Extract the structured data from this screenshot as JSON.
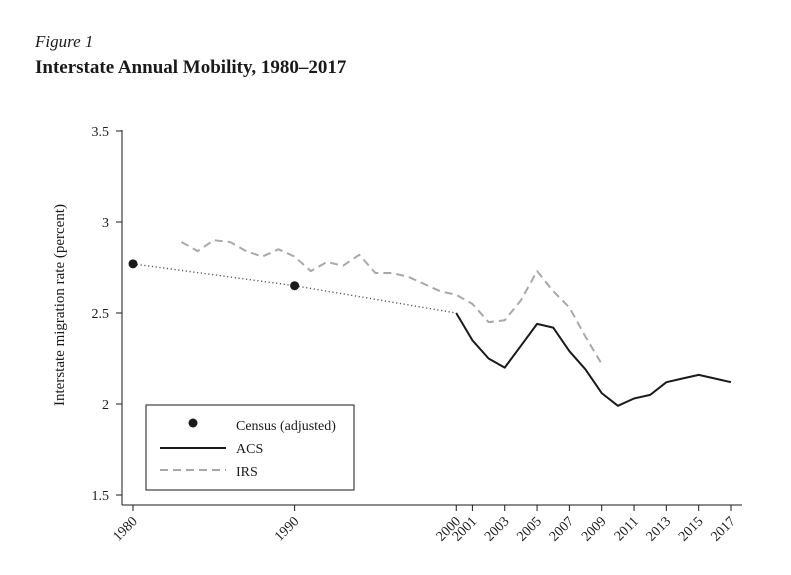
{
  "figure_label": "Figure 1",
  "figure_title": "Interstate Annual Mobility, 1980–2017",
  "colors": {
    "acs": "#1a1a1a",
    "irs": "#a8a8a8",
    "census": "#1a1a1a",
    "dotted": "#555555"
  },
  "chart_data": {
    "type": "line",
    "title": "Interstate Annual Mobility, 1980–2017",
    "xlabel": "",
    "ylabel": "Interstate migration rate (percent)",
    "xlim": [
      1980,
      2017
    ],
    "ylim": [
      1.5,
      3.5
    ],
    "x_ticks": [
      "1980",
      "1990",
      "2000",
      "2001",
      "2003",
      "2005",
      "2007",
      "2009",
      "2011",
      "2013",
      "2015",
      "2017"
    ],
    "y_ticks": [
      "1.5",
      "2",
      "2.5",
      "3",
      "3.5"
    ],
    "series": [
      {
        "name": "Census (adjusted)",
        "style": "points",
        "x": [
          1980,
          1990
        ],
        "y": [
          2.77,
          2.65
        ]
      },
      {
        "name": "ACS",
        "style": "solid",
        "x": [
          2000,
          2001,
          2002,
          2003,
          2004,
          2005,
          2006,
          2007,
          2008,
          2009,
          2010,
          2011,
          2012,
          2013,
          2014,
          2015,
          2016,
          2017
        ],
        "y": [
          2.5,
          2.35,
          2.25,
          2.2,
          2.32,
          2.44,
          2.42,
          2.29,
          2.19,
          2.06,
          1.99,
          2.03,
          2.05,
          2.12,
          2.14,
          2.16,
          2.14,
          2.12
        ]
      },
      {
        "name": "IRS",
        "style": "dashed",
        "x": [
          1983,
          1984,
          1985,
          1986,
          1987,
          1988,
          1989,
          1990,
          1991,
          1992,
          1993,
          1994,
          1995,
          1996,
          1997,
          1998,
          1999,
          2000,
          2001,
          2002,
          2003,
          2004,
          2005,
          2006,
          2007,
          2008,
          2009
        ],
        "y": [
          2.89,
          2.84,
          2.9,
          2.89,
          2.84,
          2.81,
          2.85,
          2.81,
          2.73,
          2.78,
          2.76,
          2.82,
          2.72,
          2.72,
          2.7,
          2.66,
          2.62,
          2.6,
          2.55,
          2.45,
          2.46,
          2.57,
          2.73,
          2.62,
          2.53,
          2.37,
          2.22
        ]
      },
      {
        "name": "Census-ACS connector",
        "style": "dotted",
        "x": [
          1980,
          1990,
          2000
        ],
        "y": [
          2.77,
          2.65,
          2.5
        ]
      }
    ],
    "legend": {
      "position": "bottom-left",
      "entries": [
        {
          "label": "Census (adjusted)",
          "marker": "dot"
        },
        {
          "label": "ACS",
          "marker": "solid"
        },
        {
          "label": "IRS",
          "marker": "dashed"
        }
      ]
    }
  }
}
